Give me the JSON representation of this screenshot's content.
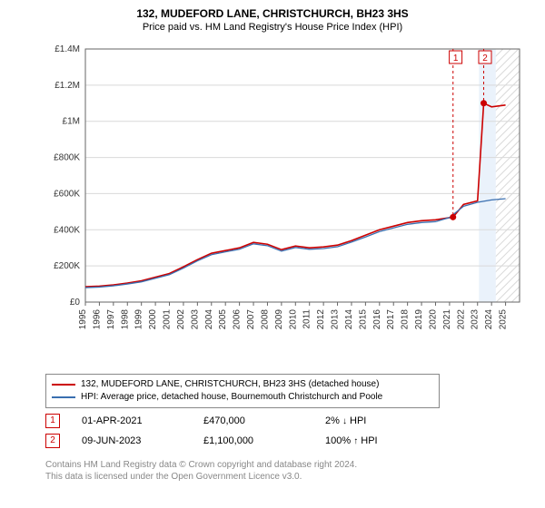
{
  "titles": {
    "address": "132, MUDEFORD LANE, CHRISTCHURCH, BH23 3HS",
    "subtitle": "Price paid vs. HM Land Registry's House Price Index (HPI)"
  },
  "chart": {
    "type": "line",
    "plot_bg": "#ffffff",
    "right_band_fill": "#eaf2fb",
    "grid_color": "#d9d9d9",
    "axis_color": "#666666",
    "tick_label_color": "#333333",
    "tick_fontsize": 10,
    "x": {
      "min": 1995,
      "max": 2026,
      "ticks": [
        1995,
        1996,
        1997,
        1998,
        1999,
        2000,
        2001,
        2002,
        2003,
        2004,
        2005,
        2006,
        2007,
        2008,
        2009,
        2010,
        2011,
        2012,
        2013,
        2014,
        2015,
        2016,
        2017,
        2018,
        2019,
        2020,
        2021,
        2022,
        2023,
        2024,
        2025
      ]
    },
    "y": {
      "min": 0,
      "max": 1400000,
      "ticks": [
        0,
        200000,
        400000,
        600000,
        800000,
        1000000,
        1200000,
        1400000
      ],
      "tick_labels": [
        "£0",
        "£200K",
        "£400K",
        "£600K",
        "£800K",
        "£1M",
        "£1.2M",
        "£1.4M"
      ]
    },
    "series": [
      {
        "name": "price_paid",
        "color": "#cc0000",
        "width": 1.6,
        "points": [
          [
            1995,
            85000
          ],
          [
            1996,
            88000
          ],
          [
            1997,
            95000
          ],
          [
            1998,
            105000
          ],
          [
            1999,
            118000
          ],
          [
            2000,
            138000
          ],
          [
            2001,
            158000
          ],
          [
            2002,
            195000
          ],
          [
            2003,
            235000
          ],
          [
            2004,
            270000
          ],
          [
            2005,
            285000
          ],
          [
            2006,
            300000
          ],
          [
            2007,
            330000
          ],
          [
            2008,
            320000
          ],
          [
            2009,
            290000
          ],
          [
            2010,
            310000
          ],
          [
            2011,
            300000
          ],
          [
            2012,
            305000
          ],
          [
            2013,
            315000
          ],
          [
            2014,
            340000
          ],
          [
            2015,
            370000
          ],
          [
            2016,
            400000
          ],
          [
            2017,
            420000
          ],
          [
            2018,
            440000
          ],
          [
            2019,
            450000
          ],
          [
            2020,
            455000
          ],
          [
            2021.25,
            470000
          ],
          [
            2022,
            540000
          ],
          [
            2023,
            560000
          ],
          [
            2023.44,
            1100000
          ],
          [
            2024,
            1080000
          ],
          [
            2025,
            1090000
          ]
        ]
      },
      {
        "name": "hpi",
        "color": "#3a6fb0",
        "width": 1.3,
        "points": [
          [
            1995,
            80000
          ],
          [
            1996,
            83000
          ],
          [
            1997,
            90000
          ],
          [
            1998,
            100000
          ],
          [
            1999,
            112000
          ],
          [
            2000,
            132000
          ],
          [
            2001,
            152000
          ],
          [
            2002,
            188000
          ],
          [
            2003,
            228000
          ],
          [
            2004,
            262000
          ],
          [
            2005,
            278000
          ],
          [
            2006,
            292000
          ],
          [
            2007,
            322000
          ],
          [
            2008,
            312000
          ],
          [
            2009,
            282000
          ],
          [
            2010,
            302000
          ],
          [
            2011,
            292000
          ],
          [
            2012,
            296000
          ],
          [
            2013,
            306000
          ],
          [
            2014,
            332000
          ],
          [
            2015,
            360000
          ],
          [
            2016,
            390000
          ],
          [
            2017,
            410000
          ],
          [
            2018,
            430000
          ],
          [
            2019,
            440000
          ],
          [
            2020,
            445000
          ],
          [
            2021,
            468000
          ],
          [
            2022,
            530000
          ],
          [
            2023,
            552000
          ],
          [
            2024,
            565000
          ],
          [
            2025,
            572000
          ]
        ]
      }
    ],
    "markers": [
      {
        "id": "1",
        "x": 2021.25,
        "y": 470000,
        "label_x": 2021.5,
        "label_y_top": true,
        "dot_color": "#cc0000",
        "box_border": "#cc0000",
        "box_text": "#cc0000",
        "dash_color": "#cc0000"
      },
      {
        "id": "2",
        "x": 2023.44,
        "y": 1100000,
        "label_x": 2023.6,
        "label_y_top": true,
        "dot_color": "#cc0000",
        "box_border": "#cc0000",
        "box_text": "#cc0000",
        "dash_color": "#cc0000"
      }
    ],
    "hatched_future": {
      "from_x": 2024.3,
      "to_x": 2026,
      "stroke": "#bfbfbf"
    }
  },
  "legend": {
    "items": [
      {
        "color": "#cc0000",
        "label": "132, MUDEFORD LANE, CHRISTCHURCH, BH23 3HS (detached house)"
      },
      {
        "color": "#3a6fb0",
        "label": "HPI: Average price, detached house, Bournemouth Christchurch and Poole"
      }
    ]
  },
  "events": [
    {
      "id": "1",
      "date": "01-APR-2021",
      "price": "£470,000",
      "pct": "2%",
      "dir": "down",
      "dir_glyph": "↓",
      "vs": "HPI"
    },
    {
      "id": "2",
      "date": "09-JUN-2023",
      "price": "£1,100,000",
      "pct": "100%",
      "dir": "up",
      "dir_glyph": "↑",
      "vs": "HPI"
    }
  ],
  "footer": {
    "line1": "Contains HM Land Registry data © Crown copyright and database right 2024.",
    "line2": "This data is licensed under the Open Government Licence v3.0."
  }
}
